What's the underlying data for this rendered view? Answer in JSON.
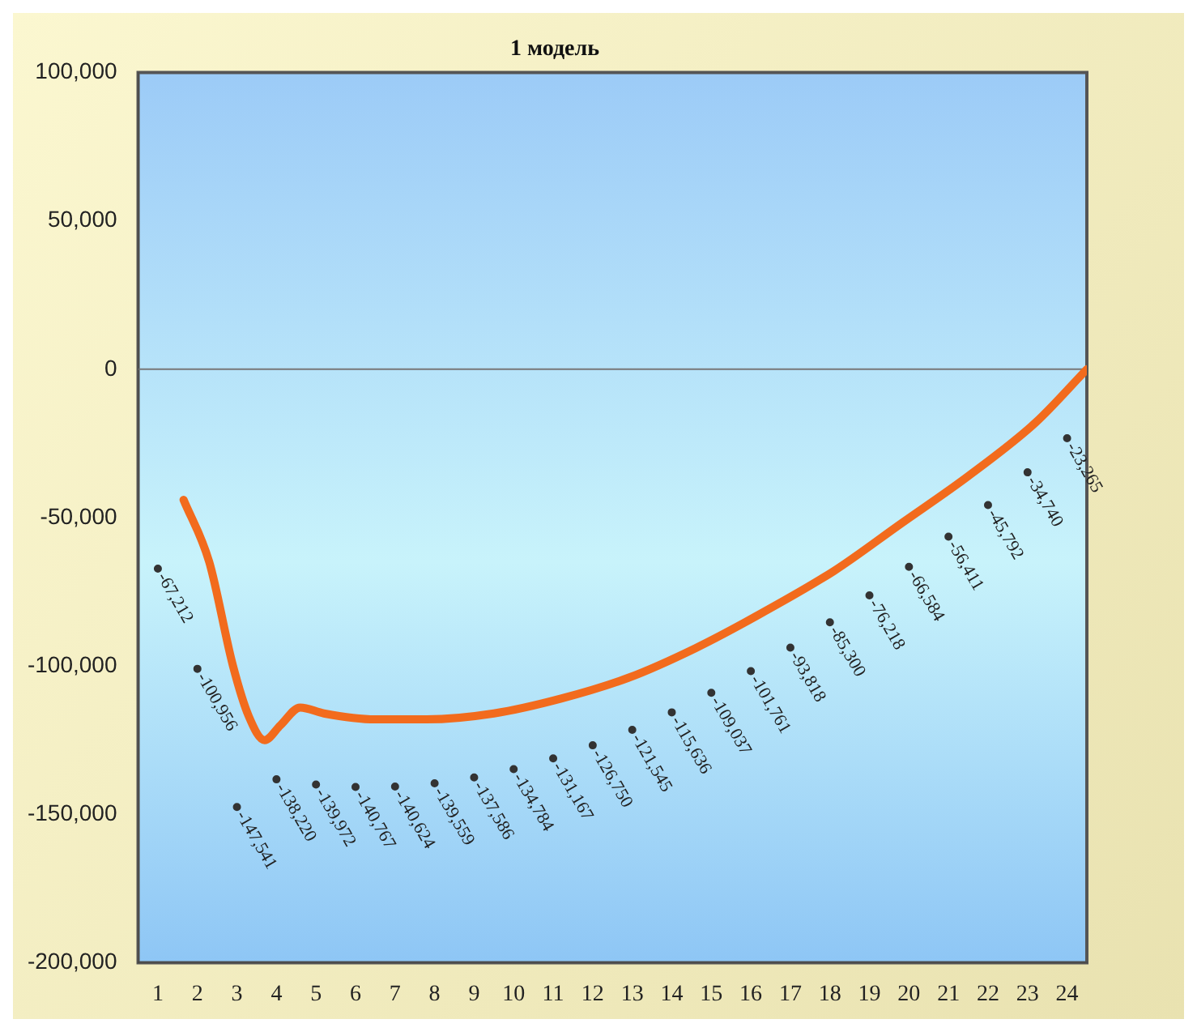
{
  "chart_data": {
    "type": "line",
    "title": "1 модель",
    "xlim": [
      0.5,
      24.5
    ],
    "xticks": [
      1,
      2,
      3,
      4,
      5,
      6,
      7,
      8,
      9,
      10,
      11,
      12,
      13,
      14,
      15,
      16,
      17,
      18,
      19,
      20,
      21,
      22,
      23,
      24
    ],
    "ylim": [
      -200000,
      100000
    ],
    "yticks": [
      {
        "value": -200000,
        "label": "-200,000"
      },
      {
        "value": -150000,
        "label": "-150,000"
      },
      {
        "value": -100000,
        "label": "-100,000"
      },
      {
        "value": -50000,
        "label": "-50,000"
      },
      {
        "value": 0,
        "label": "0"
      },
      {
        "value": 50000,
        "label": "50,000"
      },
      {
        "value": 100000,
        "label": "100,000"
      }
    ],
    "legend": false,
    "ref_lines": [
      {
        "axis": "y",
        "value": 0,
        "color": "#777777"
      }
    ],
    "series": [
      {
        "color": "#f26b1d",
        "x": [
          1.65,
          2.3,
          2.9,
          3.3,
          3.7,
          4.1,
          4.6,
          5.2,
          6.5,
          7.8,
          9.5,
          11.2,
          12.9,
          14.6,
          16.3,
          18.1,
          19.8,
          21.5,
          23.2,
          24.5
        ],
        "values": [
          -44000,
          -65000,
          -100000,
          -117000,
          -125000,
          -120000,
          -114000,
          -116000,
          -118000,
          -118000,
          -116000,
          -111000,
          -104000,
          -94000,
          -82000,
          -68000,
          -52000,
          -36000,
          -18000,
          0
        ]
      },
      {
        "type": "scatter",
        "marker": "circle",
        "color": "#333333",
        "x": [
          1,
          2,
          3,
          4,
          5,
          6,
          7,
          8,
          9,
          10,
          11,
          12,
          13,
          14,
          15,
          16,
          17,
          18,
          19,
          20,
          21,
          22,
          23,
          24
        ],
        "values": [
          -67212,
          -100956,
          -147541,
          -138220,
          -139972,
          -140767,
          -140624,
          -139559,
          -137586,
          -134784,
          -131167,
          -126750,
          -121545,
          -115636,
          -109037,
          -101761,
          -93818,
          -85300,
          -76218,
          -66584,
          -56411,
          -45792,
          -34740,
          -23265
        ],
        "value_labels": [
          "-67,212",
          "-100,956",
          "-147,541",
          "-138,220",
          "-139,972",
          "-140,767",
          "-140,624",
          "-139,559",
          "-137,586",
          "-134,784",
          "-131,167",
          "-126,750",
          "-121,545",
          "-115,636",
          "-109,037",
          "-101,761",
          "-93,818",
          "-85,300",
          "-76,218",
          "-66,584",
          "-56,411",
          "-45,792",
          "-34,740",
          "-23,265"
        ]
      }
    ]
  }
}
